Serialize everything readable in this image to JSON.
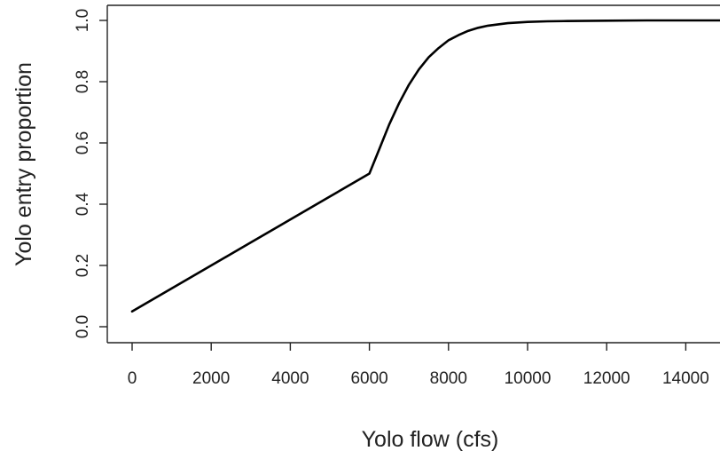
{
  "chart_data": {
    "type": "line",
    "title": "",
    "xlabel": "Yolo flow (cfs)",
    "ylabel": "Yolo entry proportion",
    "xlim": [
      0,
      15000
    ],
    "ylim": [
      0,
      1.0
    ],
    "x_ticks": [
      "0",
      "2000",
      "4000",
      "6000",
      "8000",
      "10000",
      "12000",
      "14000"
    ],
    "y_ticks": [
      "0.0",
      "0.2",
      "0.4",
      "0.6",
      "0.8",
      "1.0"
    ],
    "grid": false,
    "series": [
      {
        "color": "#000000",
        "x": [
          0,
          1000,
          2000,
          3000,
          4000,
          5000,
          6000,
          6250,
          6500,
          6750,
          7000,
          7250,
          7500,
          7750,
          8000,
          8250,
          8500,
          8750,
          9000,
          9500,
          10000,
          10500,
          11000,
          12000,
          13000,
          14000,
          15000
        ],
        "y": [
          0.05,
          0.125,
          0.2,
          0.275,
          0.35,
          0.425,
          0.5,
          0.58,
          0.66,
          0.73,
          0.79,
          0.84,
          0.88,
          0.91,
          0.935,
          0.952,
          0.966,
          0.976,
          0.983,
          0.991,
          0.995,
          0.997,
          0.998,
          0.999,
          1.0,
          1.0,
          1.0
        ]
      }
    ]
  }
}
